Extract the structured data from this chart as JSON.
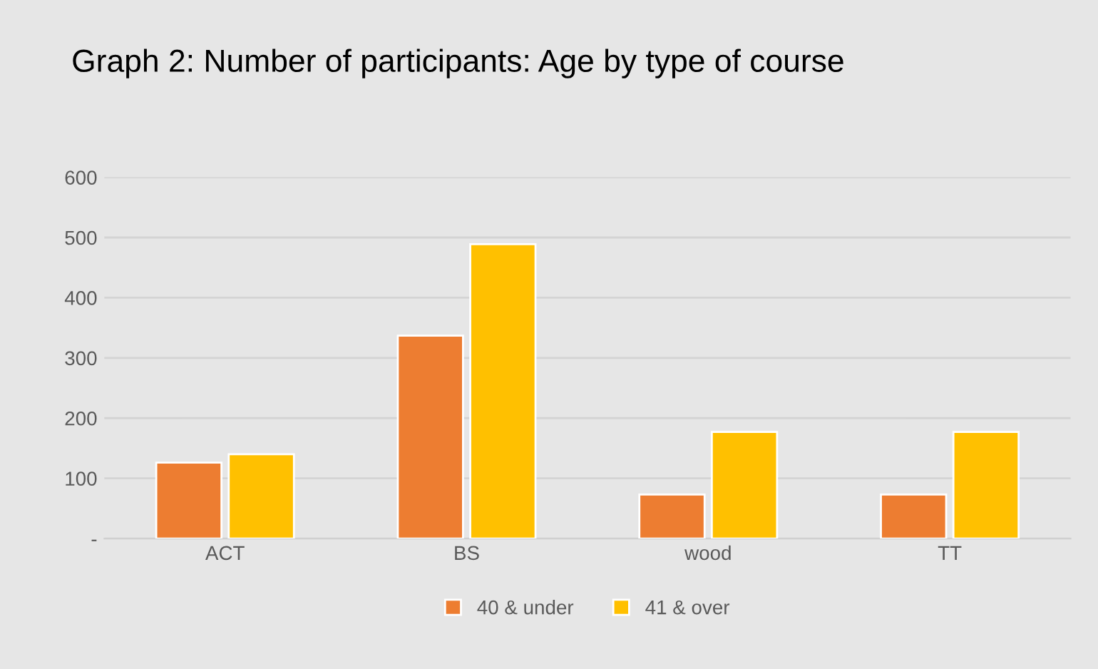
{
  "chart_data": {
    "type": "bar",
    "title": "Graph 2: Number of participants: Age by type of course",
    "categories": [
      "ACT",
      "BS",
      "wood",
      "TT"
    ],
    "series": [
      {
        "name": "40 & under",
        "color": "#ed7d31",
        "values": [
          126,
          337,
          73,
          73
        ]
      },
      {
        "name": "41 & over",
        "color": "#ffc000",
        "values": [
          140,
          489,
          177,
          177
        ]
      }
    ],
    "ylim": [
      0,
      600
    ],
    "yticks": [
      {
        "value": 0,
        "label": "-"
      },
      100,
      200,
      300,
      400,
      500,
      600
    ],
    "grid": "y",
    "legend": "bottom"
  }
}
